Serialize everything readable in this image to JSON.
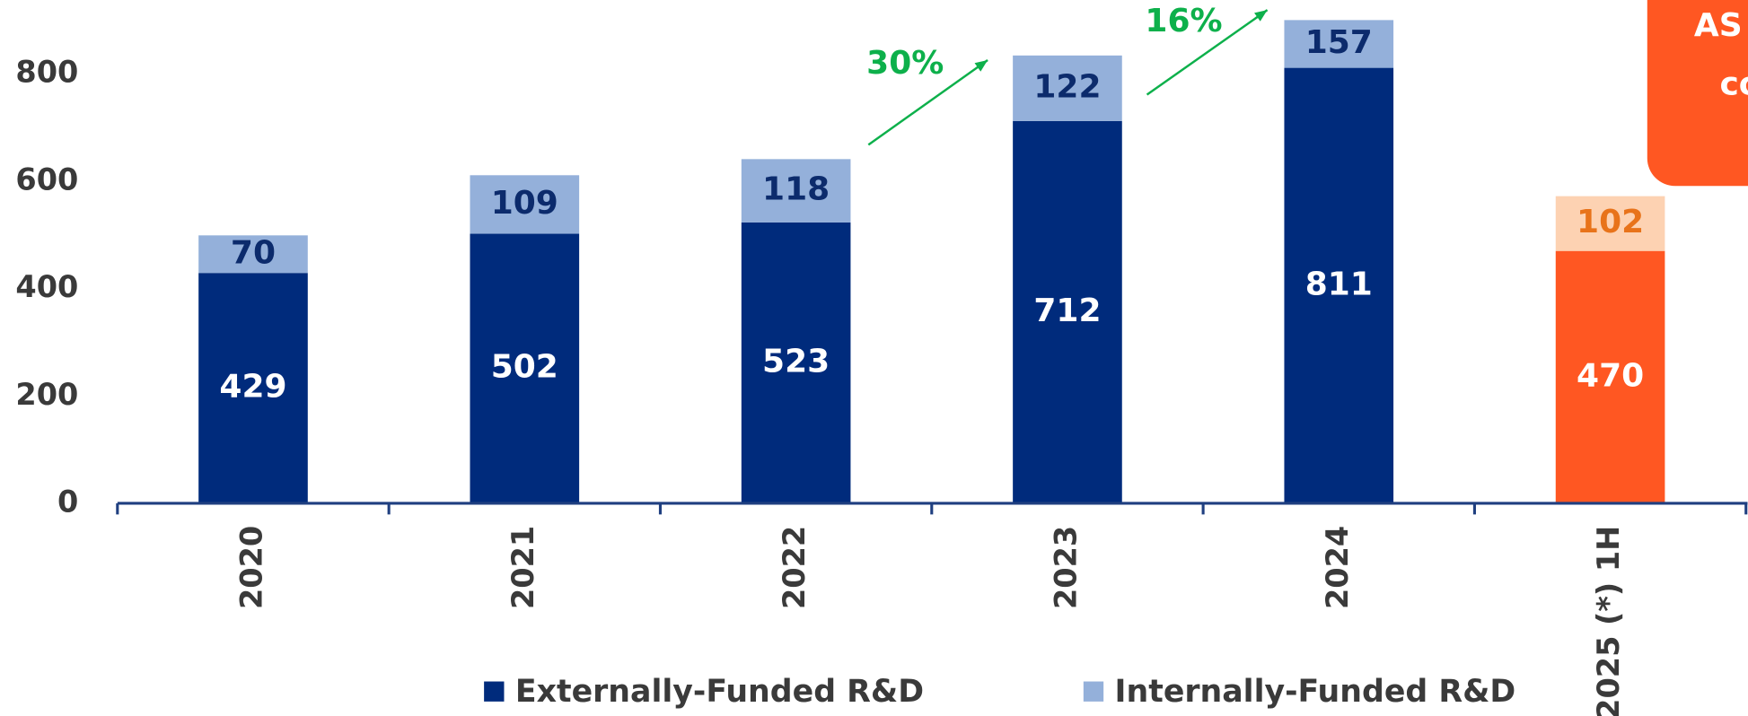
{
  "chart_data": {
    "type": "stacked_bar",
    "categories": [
      "2020",
      "2021",
      "2022",
      "2023",
      "2024",
      "2025 (*) 1H"
    ],
    "series": [
      {
        "name": "Externally-Funded R&D",
        "color": "#002b7c",
        "colors": [
          "#002b7c",
          "#002b7c",
          "#002b7c",
          "#002b7c",
          "#002b7c",
          "#ff5722"
        ],
        "label_colors": [
          "#ffffff",
          "#ffffff",
          "#ffffff",
          "#ffffff",
          "#ffffff",
          "#ffffff"
        ],
        "values": [
          429,
          502,
          523,
          712,
          811,
          470
        ]
      },
      {
        "name": "Internally-Funded R&D",
        "color": "#94b0da",
        "colors": [
          "#94b0da",
          "#94b0da",
          "#94b0da",
          "#94b0da",
          "#94b0da",
          "#fdd2b2"
        ],
        "label_colors": [
          "#0c2b6c",
          "#0c2b6c",
          "#0c2b6c",
          "#0c2b6c",
          "#0c2b6c",
          "#e8731a"
        ],
        "values": [
          70,
          109,
          118,
          122,
          157,
          102
        ]
      }
    ],
    "ylim": [
      0,
      900
    ],
    "yticks": [
      0,
      200,
      400,
      600,
      800
    ],
    "annotations": [
      {
        "text": "30%",
        "color": "#0db04b"
      },
      {
        "text": "16%",
        "color": "#0db04b"
      }
    ],
    "callout": {
      "lines": [
        "AS",
        "co"
      ],
      "color": "#ff5722"
    }
  }
}
